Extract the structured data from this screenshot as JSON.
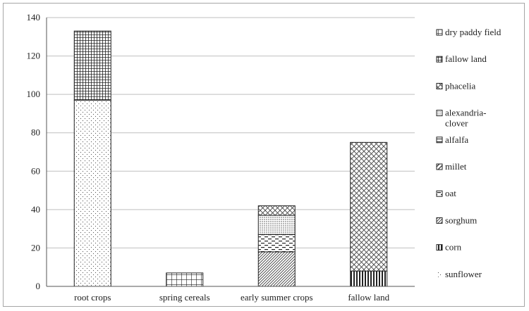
{
  "chart_data": {
    "type": "bar",
    "stacked": true,
    "title": "",
    "xlabel": "",
    "ylabel": "",
    "ylim": [
      0,
      140
    ],
    "yticks": [
      0,
      20,
      40,
      60,
      80,
      100,
      120,
      140
    ],
    "grid": true,
    "legend_position": "right",
    "categories": [
      "root crops",
      "spring cereals",
      "early summer crops",
      "fallow land"
    ],
    "series": [
      {
        "name": "sunflower",
        "pattern": "dots",
        "values": [
          97,
          0,
          0,
          0
        ]
      },
      {
        "name": "corn",
        "pattern": "vlines",
        "values": [
          0,
          0,
          0,
          8
        ]
      },
      {
        "name": "sorghum",
        "pattern": "diag-dense",
        "values": [
          0,
          0,
          18,
          0
        ]
      },
      {
        "name": "oat",
        "pattern": "dashes",
        "values": [
          0,
          0,
          9,
          0
        ]
      },
      {
        "name": "millet",
        "pattern": "diag",
        "values": [
          0,
          0,
          0,
          0
        ]
      },
      {
        "name": "alfalfa",
        "pattern": "hlines",
        "values": [
          0,
          0,
          0,
          0
        ]
      },
      {
        "name": "alexandria-clover",
        "pattern": "dots-dense",
        "values": [
          0,
          0,
          10,
          0
        ]
      },
      {
        "name": "phacelia",
        "pattern": "crosshatch",
        "values": [
          0,
          0,
          5,
          67
        ]
      },
      {
        "name": "fallow land",
        "pattern": "grid-dense",
        "values": [
          36,
          0,
          0,
          0
        ]
      },
      {
        "name": "dry paddy field",
        "pattern": "grid",
        "values": [
          0,
          7,
          0,
          0
        ]
      }
    ],
    "legend_order": [
      "dry paddy field",
      "fallow land",
      "phacelia",
      "alexandria-\nclover",
      "alfalfa",
      "millet",
      "oat",
      "sorghum",
      "corn",
      "sunflower"
    ]
  }
}
